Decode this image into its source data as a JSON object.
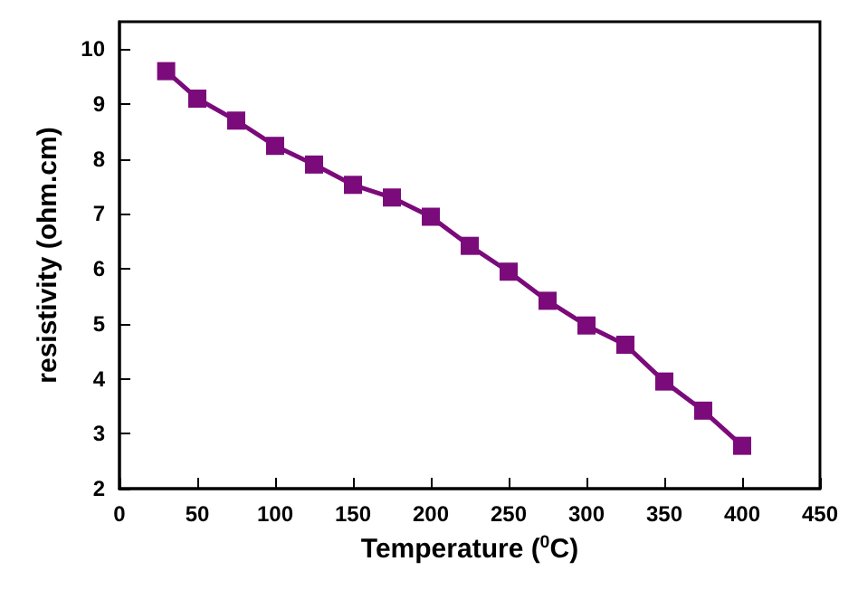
{
  "chart_data": {
    "type": "line",
    "xlabel": "Temperature ($^{0}$C)",
    "ylabel": "resistivity (ohm.cm)",
    "x": [
      30,
      50,
      75,
      100,
      125,
      150,
      175,
      200,
      225,
      250,
      275,
      300,
      325,
      350,
      375,
      400
    ],
    "series": [
      {
        "color": "#7b0a7b",
        "values": [
          9.6,
          9.1,
          8.7,
          8.24,
          7.9,
          7.53,
          7.3,
          6.95,
          6.42,
          5.95,
          5.42,
          4.97,
          4.62,
          3.95,
          3.42,
          2.78
        ]
      }
    ],
    "xlim": [
      0,
      450
    ],
    "xticks": [
      0,
      50,
      100,
      150,
      200,
      250,
      300,
      350,
      400,
      450
    ],
    "ylim": [
      2,
      10.5
    ],
    "yticks": [
      2,
      3,
      4,
      5,
      6,
      7,
      8,
      9,
      10
    ],
    "marker": "square",
    "line_style": "solid"
  }
}
